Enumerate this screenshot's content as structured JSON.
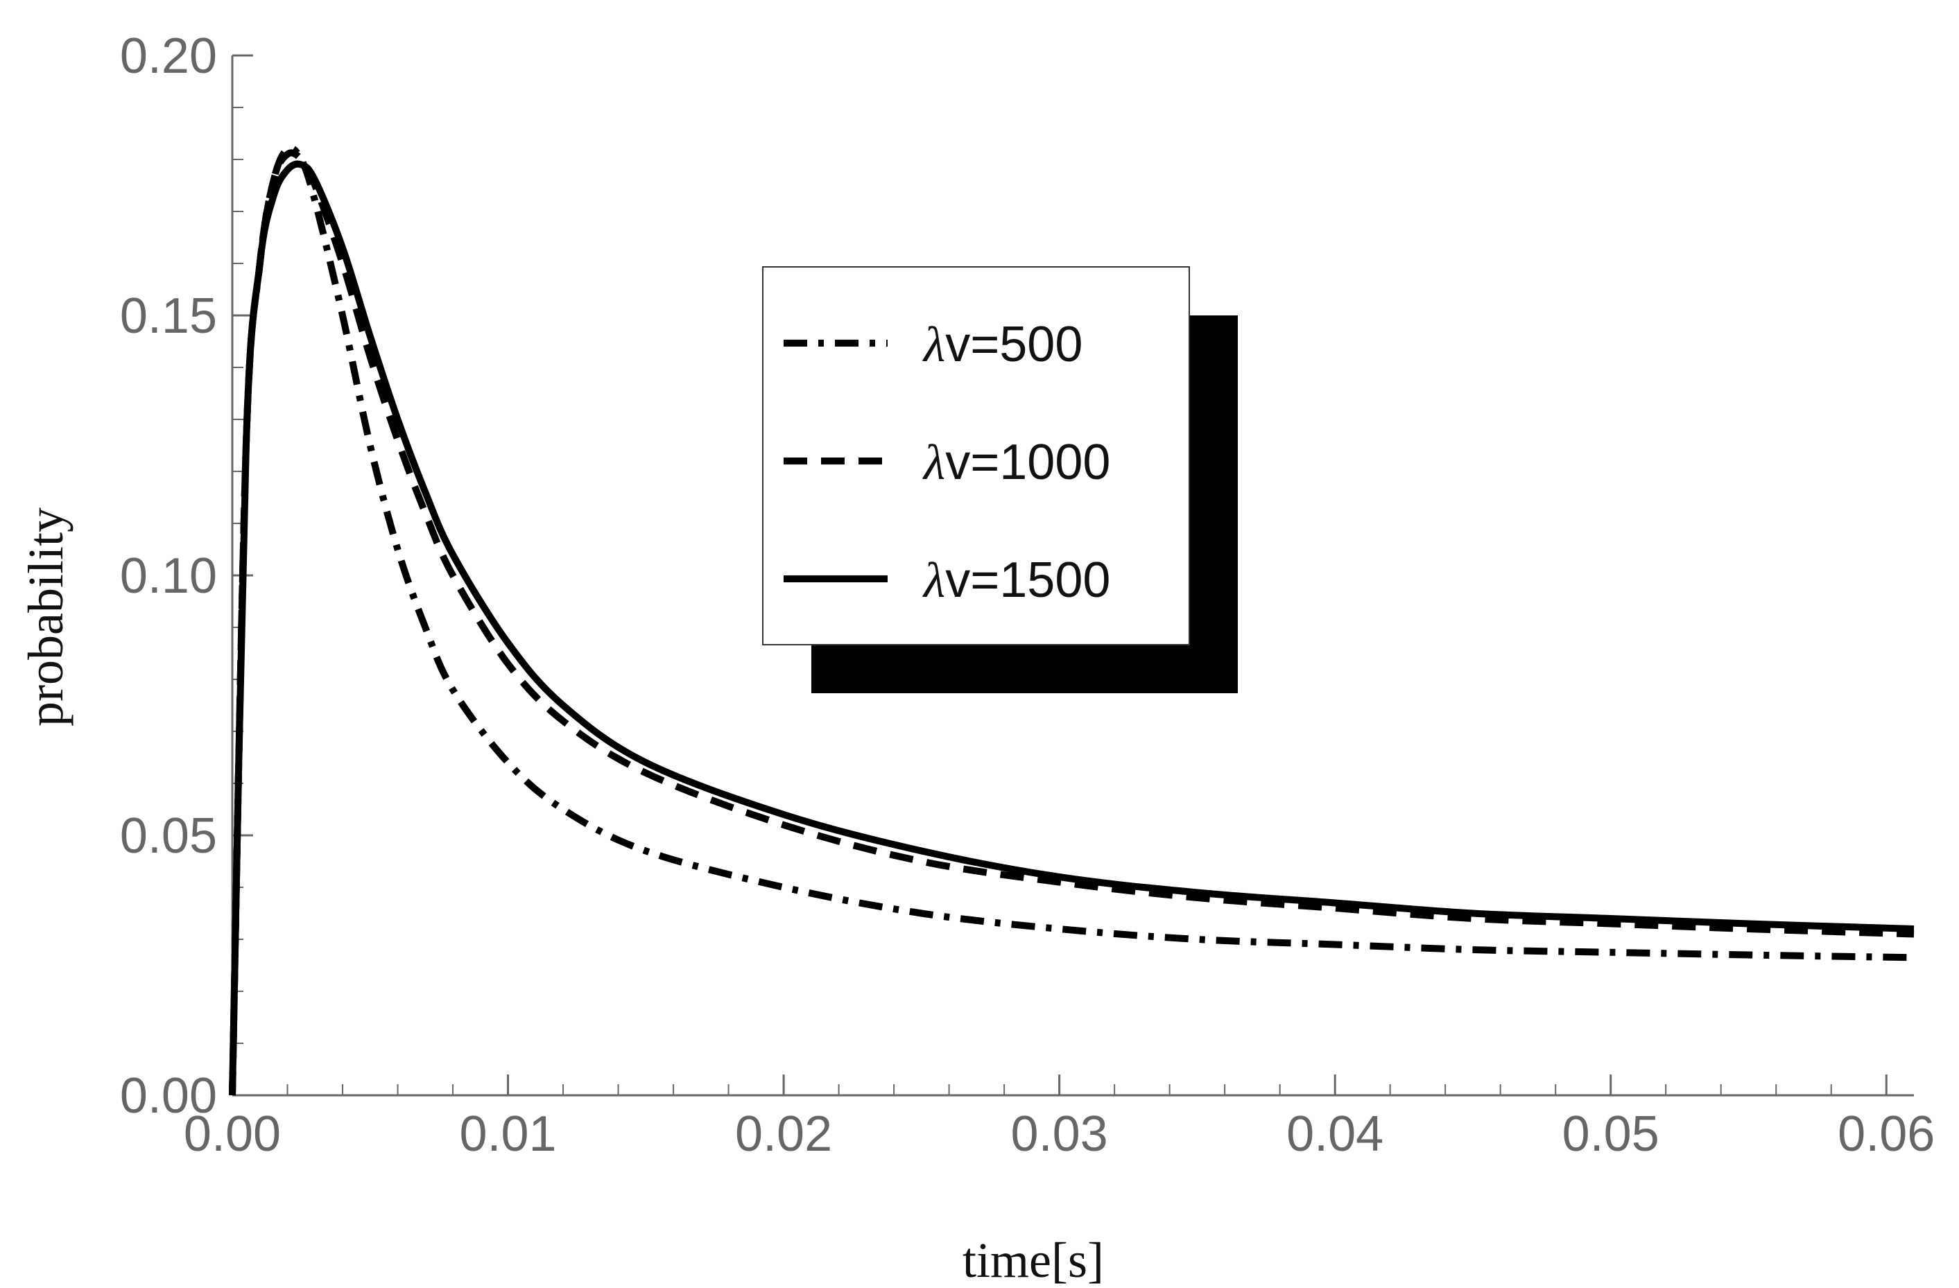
{
  "chart_data": {
    "type": "line",
    "title": "",
    "xlabel": "time[s]",
    "ylabel": "probability",
    "xlim": [
      0,
      0.061
    ],
    "ylim": [
      0,
      0.2
    ],
    "x_ticks": [
      "0.00",
      "0.01",
      "0.02",
      "0.03",
      "0.04",
      "0.05",
      "0.06"
    ],
    "y_ticks": [
      "0.00",
      "0.05",
      "0.10",
      "0.15",
      "0.20"
    ],
    "grid": false,
    "legend_position": "center-top",
    "colors": {
      "line": "#000000",
      "tick_label": "#666666",
      "axis": "#666666"
    },
    "series": [
      {
        "name": "λv=500",
        "symbol": "λ",
        "label_rest": "v=500",
        "style": "dash-dot",
        "x": [
          0,
          0.0005,
          0.001,
          0.0015,
          0.002,
          0.0025,
          0.003,
          0.004,
          0.005,
          0.006,
          0.007,
          0.008,
          0.01,
          0.012,
          0.015,
          0.02,
          0.025,
          0.03,
          0.035,
          0.04,
          0.045,
          0.05,
          0.055,
          0.061
        ],
        "y": [
          0,
          0.125,
          0.16,
          0.176,
          0.182,
          0.18,
          0.172,
          0.15,
          0.125,
          0.105,
          0.09,
          0.078,
          0.064,
          0.055,
          0.047,
          0.04,
          0.035,
          0.032,
          0.03,
          0.029,
          0.028,
          0.0275,
          0.027,
          0.0265
        ]
      },
      {
        "name": "λv=1000",
        "symbol": "λ",
        "label_rest": "v=1000",
        "style": "dashed",
        "x": [
          0,
          0.0005,
          0.001,
          0.0015,
          0.002,
          0.0025,
          0.003,
          0.004,
          0.005,
          0.006,
          0.007,
          0.008,
          0.01,
          0.012,
          0.015,
          0.02,
          0.025,
          0.03,
          0.035,
          0.04,
          0.045,
          0.05,
          0.055,
          0.061
        ],
        "y": [
          0,
          0.125,
          0.16,
          0.176,
          0.181,
          0.18,
          0.175,
          0.16,
          0.142,
          0.126,
          0.112,
          0.1,
          0.083,
          0.072,
          0.062,
          0.052,
          0.045,
          0.041,
          0.038,
          0.036,
          0.034,
          0.033,
          0.032,
          0.031
        ]
      },
      {
        "name": "λv=1500",
        "symbol": "λ",
        "label_rest": "v=1500",
        "style": "solid",
        "x": [
          0,
          0.0005,
          0.001,
          0.0015,
          0.002,
          0.0025,
          0.003,
          0.004,
          0.005,
          0.006,
          0.007,
          0.008,
          0.01,
          0.012,
          0.015,
          0.02,
          0.025,
          0.03,
          0.035,
          0.04,
          0.045,
          0.05,
          0.055,
          0.061
        ],
        "y": [
          0,
          0.125,
          0.16,
          0.173,
          0.178,
          0.179,
          0.176,
          0.163,
          0.146,
          0.13,
          0.116,
          0.104,
          0.087,
          0.075,
          0.064,
          0.054,
          0.047,
          0.042,
          0.039,
          0.037,
          0.035,
          0.034,
          0.033,
          0.032
        ]
      }
    ]
  }
}
